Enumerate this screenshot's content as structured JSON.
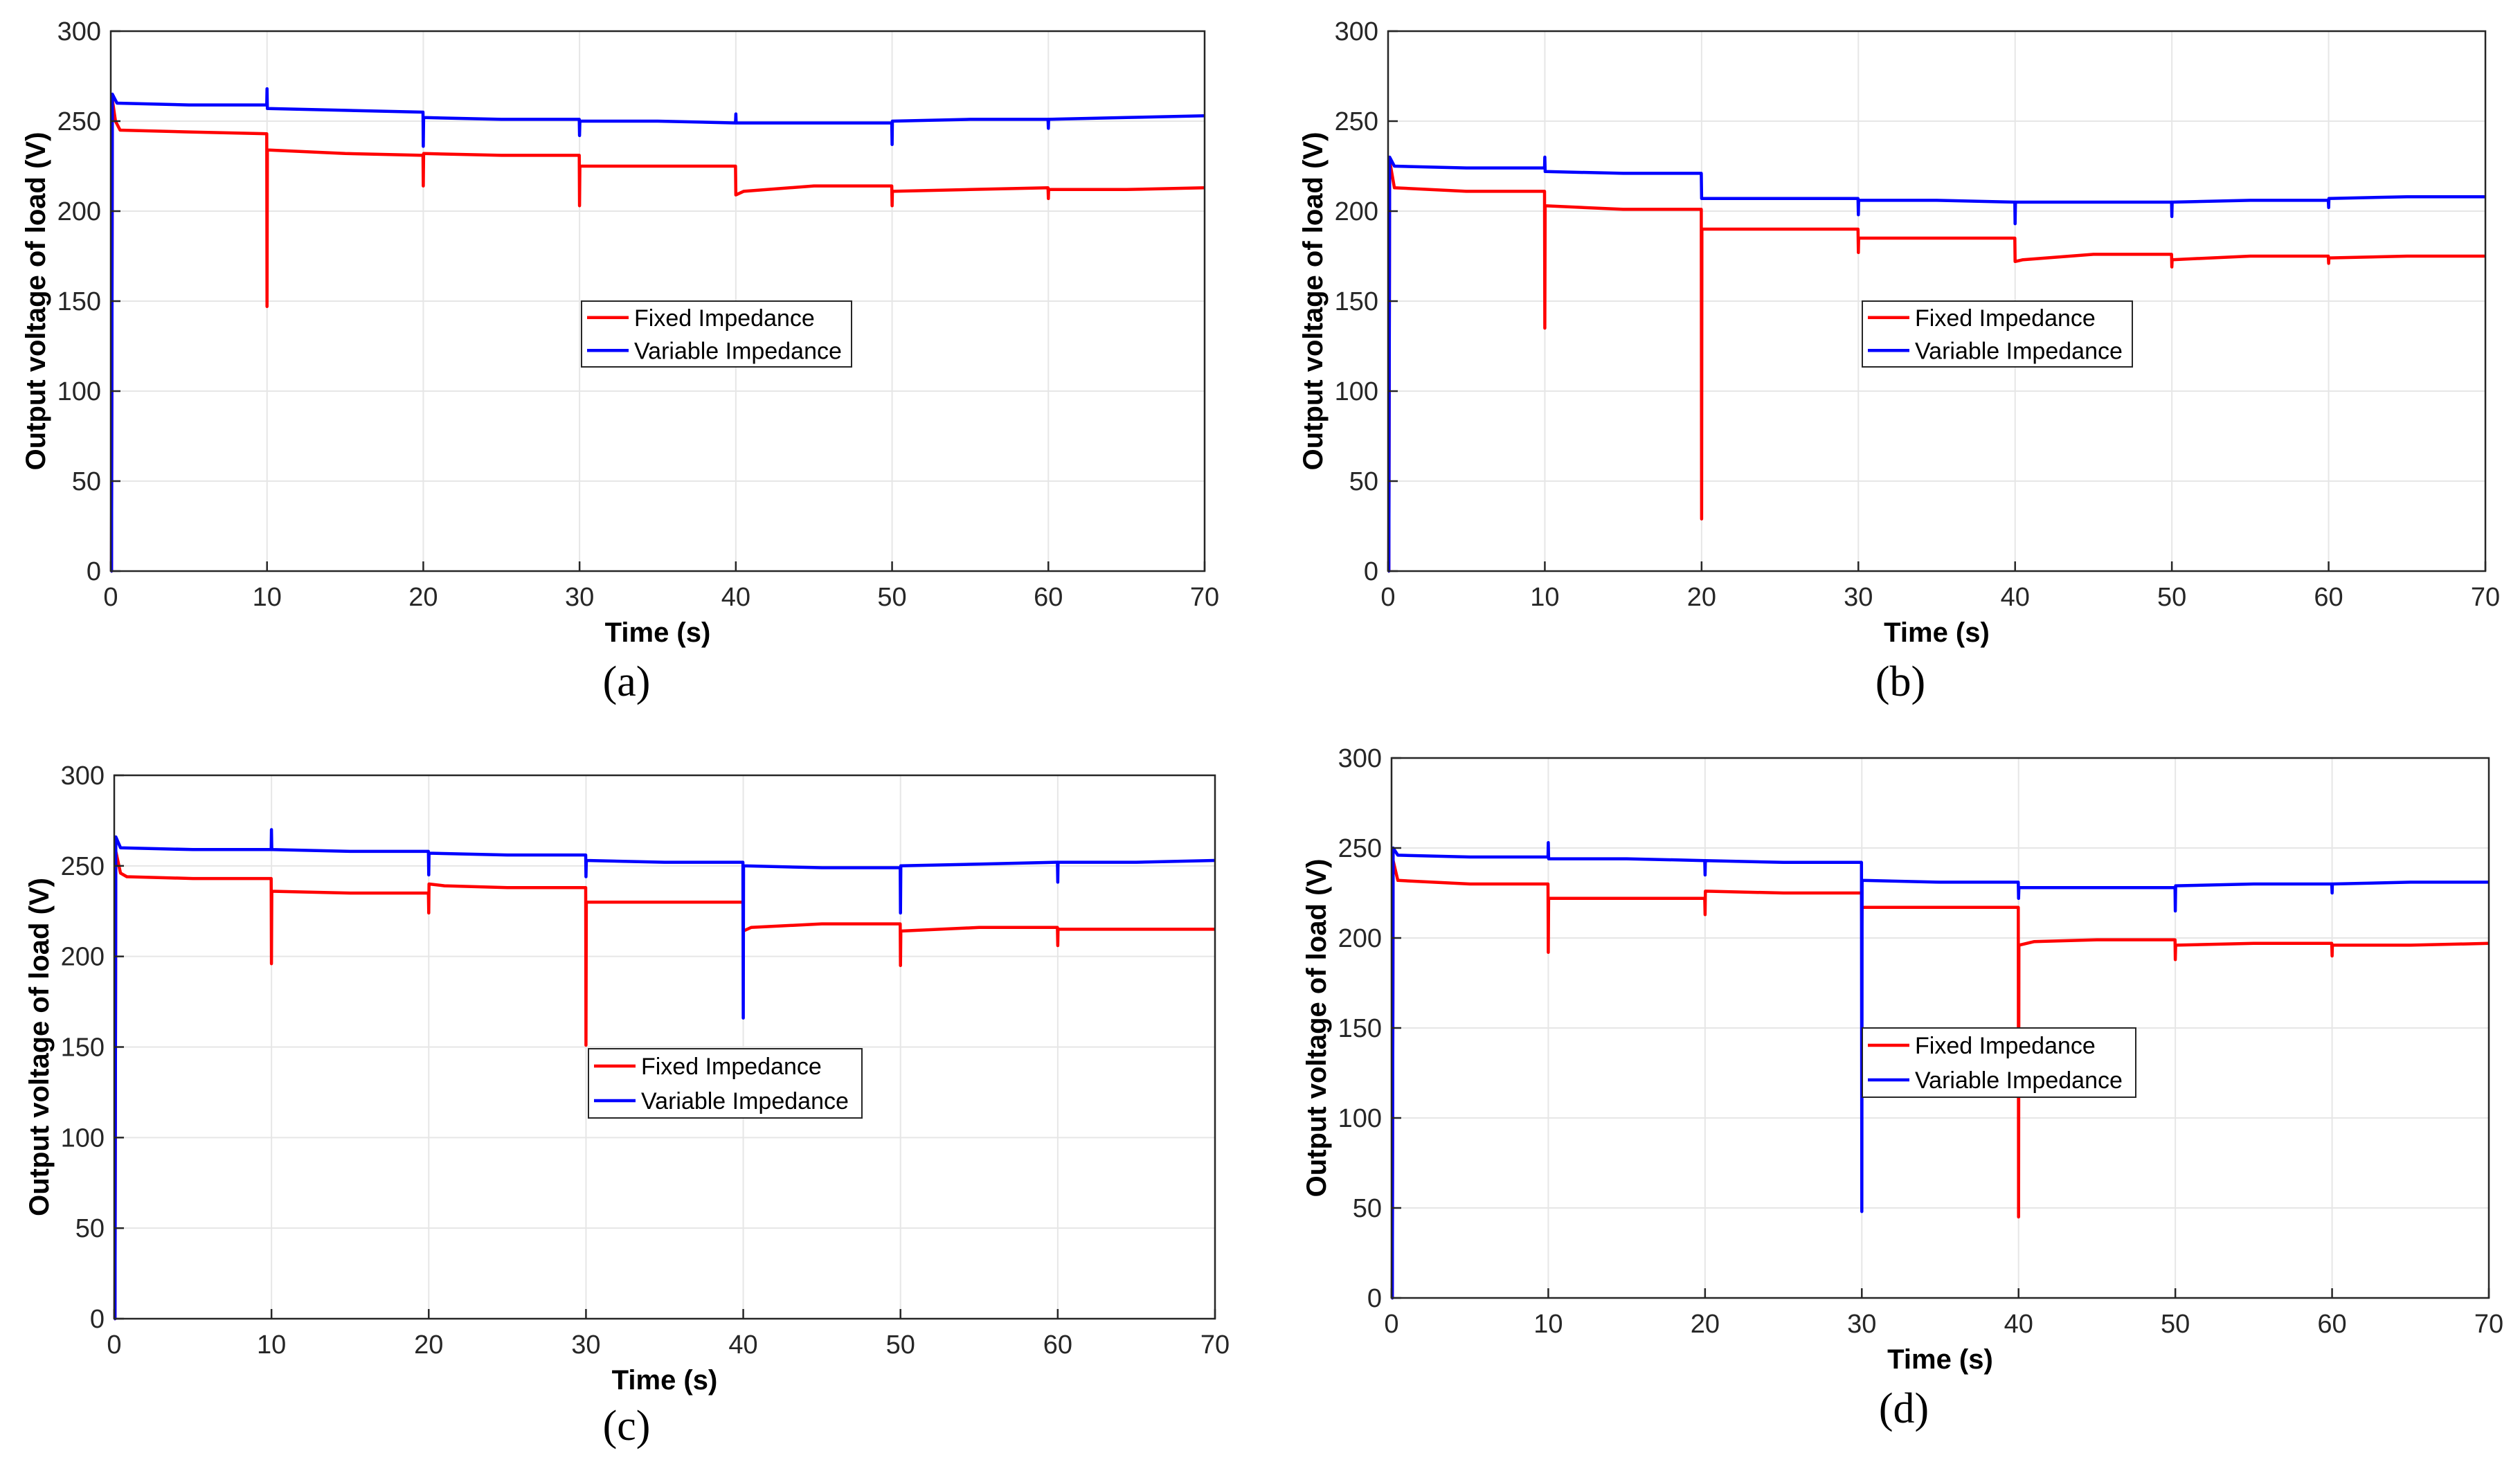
{
  "chart_data": [
    {
      "id": "a",
      "type": "line",
      "caption": "(a)",
      "xlabel": "Time (s)",
      "ylabel": "Output voltage of load (V)",
      "xlim": [
        0,
        70
      ],
      "ylim": [
        0,
        300
      ],
      "xticks": [
        0,
        10,
        20,
        30,
        40,
        50,
        60,
        70
      ],
      "yticks": [
        0,
        50,
        100,
        150,
        200,
        250,
        300
      ],
      "grid": true,
      "legend": "center",
      "series": [
        {
          "name": "Fixed Impedance",
          "color": "#ff0000",
          "points": [
            [
              0,
              0
            ],
            [
              0.05,
              0
            ],
            [
              0.1,
              262
            ],
            [
              0.3,
              250
            ],
            [
              0.6,
              245
            ],
            [
              5,
              244
            ],
            [
              9.98,
              243
            ],
            [
              10,
              147
            ],
            [
              10.02,
              234
            ],
            [
              15,
              232
            ],
            [
              19.98,
              231
            ],
            [
              20,
              214
            ],
            [
              20.02,
              232
            ],
            [
              25,
              231
            ],
            [
              29.98,
              231
            ],
            [
              30,
              203
            ],
            [
              30.02,
              225
            ],
            [
              35,
              225
            ],
            [
              39.98,
              225
            ],
            [
              40,
              209
            ],
            [
              40.5,
              211
            ],
            [
              45,
              214
            ],
            [
              49.98,
              214
            ],
            [
              50,
              203
            ],
            [
              50.02,
              211
            ],
            [
              55,
              212
            ],
            [
              59.98,
              213
            ],
            [
              60,
              207
            ],
            [
              60.02,
              212
            ],
            [
              65,
              212
            ],
            [
              70,
              213
            ]
          ]
        },
        {
          "name": "Variable Impedance",
          "color": "#0000ff",
          "points": [
            [
              0,
              0
            ],
            [
              0.05,
              0
            ],
            [
              0.1,
              265
            ],
            [
              0.4,
              260
            ],
            [
              5,
              259
            ],
            [
              9.98,
              259
            ],
            [
              10,
              268
            ],
            [
              10.02,
              257
            ],
            [
              15,
              256
            ],
            [
              19.98,
              255
            ],
            [
              20,
              236
            ],
            [
              20.02,
              252
            ],
            [
              25,
              251
            ],
            [
              29.98,
              251
            ],
            [
              30,
              242
            ],
            [
              30.02,
              250
            ],
            [
              35,
              250
            ],
            [
              39.98,
              249
            ],
            [
              40,
              254
            ],
            [
              40.02,
              249
            ],
            [
              45,
              249
            ],
            [
              49.98,
              249
            ],
            [
              50,
              237
            ],
            [
              50.02,
              250
            ],
            [
              55,
              251
            ],
            [
              59.98,
              251
            ],
            [
              60,
              246
            ],
            [
              60.02,
              251
            ],
            [
              65,
              252
            ],
            [
              70,
              253
            ]
          ]
        }
      ]
    },
    {
      "id": "b",
      "type": "line",
      "caption": "(b)",
      "xlabel": "Time (s)",
      "ylabel": "Output voltage of load (V)",
      "xlim": [
        0,
        70
      ],
      "ylim": [
        0,
        300
      ],
      "xticks": [
        0,
        10,
        20,
        30,
        40,
        50,
        60,
        70
      ],
      "yticks": [
        0,
        50,
        100,
        150,
        200,
        250,
        300
      ],
      "grid": true,
      "legend": "center-right",
      "series": [
        {
          "name": "Fixed Impedance",
          "color": "#ff0000",
          "points": [
            [
              0,
              0
            ],
            [
              0.05,
              0
            ],
            [
              0.1,
              228
            ],
            [
              0.4,
              213
            ],
            [
              5,
              211
            ],
            [
              9.98,
              211
            ],
            [
              10,
              135
            ],
            [
              10.02,
              203
            ],
            [
              15,
              201
            ],
            [
              19.98,
              201
            ],
            [
              20,
              29
            ],
            [
              20.02,
              190
            ],
            [
              25,
              190
            ],
            [
              29.98,
              190
            ],
            [
              30,
              177
            ],
            [
              30.02,
              185
            ],
            [
              35,
              185
            ],
            [
              39.98,
              185
            ],
            [
              40,
              172
            ],
            [
              40.5,
              173
            ],
            [
              45,
              176
            ],
            [
              49.98,
              176
            ],
            [
              50,
              169
            ],
            [
              50.02,
              173
            ],
            [
              55,
              175
            ],
            [
              59.98,
              175
            ],
            [
              60,
              171
            ],
            [
              60.02,
              174
            ],
            [
              65,
              175
            ],
            [
              70,
              175
            ]
          ]
        },
        {
          "name": "Variable Impedance",
          "color": "#0000ff",
          "points": [
            [
              0,
              0
            ],
            [
              0.05,
              0
            ],
            [
              0.1,
              230
            ],
            [
              0.4,
              225
            ],
            [
              5,
              224
            ],
            [
              9.98,
              224
            ],
            [
              10,
              230
            ],
            [
              10.02,
              222
            ],
            [
              15,
              221
            ],
            [
              19.98,
              221
            ],
            [
              20,
              207
            ],
            [
              20.02,
              207
            ],
            [
              25,
              207
            ],
            [
              29.98,
              207
            ],
            [
              30,
              198
            ],
            [
              30.02,
              206
            ],
            [
              35,
              206
            ],
            [
              39.98,
              205
            ],
            [
              40,
              193
            ],
            [
              40.02,
              205
            ],
            [
              45,
              205
            ],
            [
              49.98,
              205
            ],
            [
              50,
              197
            ],
            [
              50.02,
              205
            ],
            [
              55,
              206
            ],
            [
              59.98,
              206
            ],
            [
              60,
              202
            ],
            [
              60.02,
              207
            ],
            [
              65,
              208
            ],
            [
              70,
              208
            ]
          ]
        }
      ]
    },
    {
      "id": "c",
      "type": "line",
      "caption": "(c)",
      "xlabel": "Time (s)",
      "ylabel": "Output voltage of load (V)",
      "xlim": [
        0,
        70
      ],
      "ylim": [
        0,
        300
      ],
      "xticks": [
        0,
        10,
        20,
        30,
        40,
        50,
        60,
        70
      ],
      "yticks": [
        0,
        50,
        100,
        150,
        200,
        250,
        300
      ],
      "grid": true,
      "legend": "center",
      "series": [
        {
          "name": "Fixed Impedance",
          "color": "#ff0000",
          "points": [
            [
              0,
              0
            ],
            [
              0.05,
              0
            ],
            [
              0.1,
              258
            ],
            [
              0.4,
              246
            ],
            [
              0.8,
              244
            ],
            [
              5,
              243
            ],
            [
              9.98,
              243
            ],
            [
              10,
              196
            ],
            [
              10.02,
              236
            ],
            [
              15,
              235
            ],
            [
              19.98,
              235
            ],
            [
              20,
              224
            ],
            [
              20.02,
              240
            ],
            [
              21,
              239
            ],
            [
              25,
              238
            ],
            [
              29.98,
              238
            ],
            [
              30,
              151
            ],
            [
              30.02,
              230
            ],
            [
              35,
              230
            ],
            [
              39.98,
              230
            ],
            [
              40,
              214
            ],
            [
              40.5,
              216
            ],
            [
              45,
              218
            ],
            [
              49.98,
              218
            ],
            [
              50,
              195
            ],
            [
              50.02,
              214
            ],
            [
              55,
              216
            ],
            [
              59.98,
              216
            ],
            [
              60,
              206
            ],
            [
              60.02,
              215
            ],
            [
              65,
              215
            ],
            [
              70,
              215
            ]
          ]
        },
        {
          "name": "Variable Impedance",
          "color": "#0000ff",
          "points": [
            [
              0,
              0
            ],
            [
              0.05,
              0
            ],
            [
              0.1,
              266
            ],
            [
              0.4,
              260
            ],
            [
              5,
              259
            ],
            [
              9.98,
              259
            ],
            [
              10,
              270
            ],
            [
              10.02,
              259
            ],
            [
              15,
              258
            ],
            [
              19.98,
              258
            ],
            [
              20,
              245
            ],
            [
              20.02,
              257
            ],
            [
              25,
              256
            ],
            [
              29.98,
              256
            ],
            [
              30,
              244
            ],
            [
              30.02,
              253
            ],
            [
              35,
              252
            ],
            [
              39.98,
              252
            ],
            [
              40,
              166
            ],
            [
              40.02,
              250
            ],
            [
              45,
              249
            ],
            [
              49.98,
              249
            ],
            [
              50,
              224
            ],
            [
              50.02,
              250
            ],
            [
              55,
              251
            ],
            [
              59.98,
              252
            ],
            [
              60,
              241
            ],
            [
              60.02,
              252
            ],
            [
              65,
              252
            ],
            [
              70,
              253
            ]
          ]
        }
      ]
    },
    {
      "id": "d",
      "type": "line",
      "caption": "(d)",
      "xlabel": "Time (s)",
      "ylabel": "Output voltage of load (V)",
      "xlim": [
        0,
        70
      ],
      "ylim": [
        0,
        300
      ],
      "xticks": [
        0,
        10,
        20,
        30,
        40,
        50,
        60,
        70
      ],
      "yticks": [
        0,
        50,
        100,
        150,
        200,
        250,
        300
      ],
      "grid": true,
      "legend": "center",
      "series": [
        {
          "name": "Fixed Impedance",
          "color": "#ff0000",
          "points": [
            [
              0,
              0
            ],
            [
              0.05,
              0
            ],
            [
              0.1,
              243
            ],
            [
              0.4,
              232
            ],
            [
              5,
              230
            ],
            [
              9.98,
              230
            ],
            [
              10,
              192
            ],
            [
              10.02,
              222
            ],
            [
              15,
              222
            ],
            [
              19.98,
              222
            ],
            [
              20,
              213
            ],
            [
              20.02,
              226
            ],
            [
              25,
              225
            ],
            [
              29.98,
              225
            ],
            [
              30,
              208
            ],
            [
              30.02,
              217
            ],
            [
              35,
              217
            ],
            [
              39.98,
              217
            ],
            [
              40,
              45
            ],
            [
              40.02,
              196
            ],
            [
              41,
              198
            ],
            [
              45,
              199
            ],
            [
              49.98,
              199
            ],
            [
              50,
              188
            ],
            [
              50.02,
              196
            ],
            [
              55,
              197
            ],
            [
              59.98,
              197
            ],
            [
              60,
              190
            ],
            [
              60.02,
              196
            ],
            [
              65,
              196
            ],
            [
              70,
              197
            ]
          ]
        },
        {
          "name": "Variable Impedance",
          "color": "#0000ff",
          "points": [
            [
              0,
              0
            ],
            [
              0.05,
              0
            ],
            [
              0.1,
              250
            ],
            [
              0.4,
              246
            ],
            [
              5,
              245
            ],
            [
              9.98,
              245
            ],
            [
              10,
              253
            ],
            [
              10.02,
              244
            ],
            [
              15,
              244
            ],
            [
              19.98,
              243
            ],
            [
              20,
              235
            ],
            [
              20.02,
              243
            ],
            [
              25,
              242
            ],
            [
              29.98,
              242
            ],
            [
              30,
              48
            ],
            [
              30.02,
              232
            ],
            [
              35,
              231
            ],
            [
              39.98,
              231
            ],
            [
              40,
              222
            ],
            [
              40.02,
              228
            ],
            [
              45,
              228
            ],
            [
              49.98,
              228
            ],
            [
              50,
              215
            ],
            [
              50.02,
              229
            ],
            [
              55,
              230
            ],
            [
              59.98,
              230
            ],
            [
              60,
              225
            ],
            [
              60.02,
              230
            ],
            [
              65,
              231
            ],
            [
              70,
              231
            ]
          ]
        }
      ]
    }
  ]
}
